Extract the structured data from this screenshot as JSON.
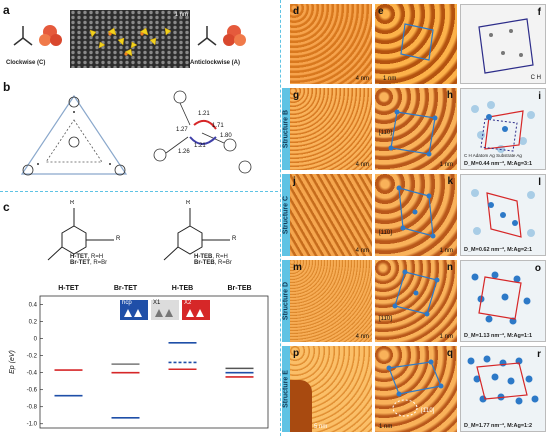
{
  "panel_labels": {
    "a": "a",
    "b": "b",
    "c": "c",
    "d": "d",
    "e": "e",
    "f": "f",
    "g": "g",
    "h": "h",
    "i": "i",
    "j": "j",
    "k": "k",
    "l": "l",
    "m": "m",
    "n": "n",
    "o": "o",
    "p": "p",
    "q": "q",
    "r": "r"
  },
  "panel_a": {
    "left_caption": "Clockwise (C)",
    "right_caption": "Anticlockwise (A)",
    "scale": "1 nm"
  },
  "panel_b": {
    "bond_labels": [
      "1.21",
      "1.71",
      "1.27",
      "1.80",
      "1.21",
      "1.26"
    ]
  },
  "panel_c": {
    "mol1_name_a": "H-TET",
    "mol1_suffix_a": ", R=H",
    "mol1_name_b": "Br-TET",
    "mol1_suffix_b": ", R=Br",
    "mol2_name_a": "H-TEB",
    "mol2_suffix_a": ", R=H",
    "mol2_name_b": "Br-TEB",
    "mol2_suffix_b": ", R=Br",
    "r_label": "R",
    "legend_hcp": "hcp",
    "legend_x1": "X1",
    "legend_x2": "X2"
  },
  "chart_data": {
    "type": "bar",
    "categories": [
      "H-TET",
      "Br-TET",
      "H-TEB",
      "Br-TEB"
    ],
    "ylabel": "Ep (eV)",
    "ylim": [
      -1.05,
      0.5
    ],
    "yticks": [
      0.4,
      0.2,
      0,
      -0.2,
      -0.4,
      -0.6,
      -0.8,
      -1.0
    ],
    "ytick_labels": [
      "0.4",
      "0.2",
      "0",
      "-0.2",
      "-0.4",
      "-0.6",
      "-0.8",
      "-1.0"
    ],
    "levels": [
      {
        "category": "H-TET",
        "value": -0.37,
        "color": "#d62728"
      },
      {
        "category": "H-TET",
        "value": -0.67,
        "color": "#1f4fa8"
      },
      {
        "category": "Br-TET",
        "value": -0.3,
        "color": "#777777"
      },
      {
        "category": "Br-TET",
        "value": -0.4,
        "color": "#d62728"
      },
      {
        "category": "Br-TET",
        "value": -0.93,
        "color": "#1f4fa8"
      },
      {
        "category": "H-TEB",
        "value": -0.05,
        "color": "#1f4fa8"
      },
      {
        "category": "H-TEB",
        "value": -0.28,
        "color": "#1f4fa8",
        "dashed": true
      },
      {
        "category": "H-TEB",
        "value": -0.36,
        "color": "#d62728"
      },
      {
        "category": "Br-TEB",
        "value": -0.35,
        "color": "#555555"
      },
      {
        "category": "Br-TEB",
        "value": -0.4,
        "color": "#1f4fa8"
      },
      {
        "category": "Br-TEB",
        "value": -0.45,
        "color": "#d62728"
      }
    ]
  },
  "right_side": {
    "structure_labels": [
      "Structure B",
      "Structure C",
      "Structure D",
      "Structure E"
    ],
    "scales": {
      "d": "4 nm",
      "e": "1 nm",
      "g": "4 nm",
      "h": "1 nm",
      "j": "4 nm",
      "k": "1 nm",
      "m": "4 nm",
      "n": "1 nm",
      "p": "5 nm",
      "q": "1 nm"
    },
    "direction_tags": {
      "h": "[11̄0]",
      "k": "[11̄0]",
      "n": "[11̄0]",
      "q": "[1̄10]"
    },
    "f_legend": "C  H",
    "i_legend_items": [
      "C",
      "H",
      "Adatom Ag",
      "Substrate Ag"
    ],
    "density": {
      "i": "D_M=0.44 nm⁻², M:Ag=3:1",
      "l": "D_M=0.62 nm⁻², M:Ag=2:1",
      "o": "D_M=1.13 nm⁻², M:Ag=1:1",
      "r": "D_M=1.77 nm⁻², M:Ag=1:2"
    }
  },
  "colors": {
    "tab": "#5fc3e4",
    "divider": "#5fc3e4",
    "stm_orange": "#e5892b",
    "ag_blue": "#2d79c7"
  }
}
